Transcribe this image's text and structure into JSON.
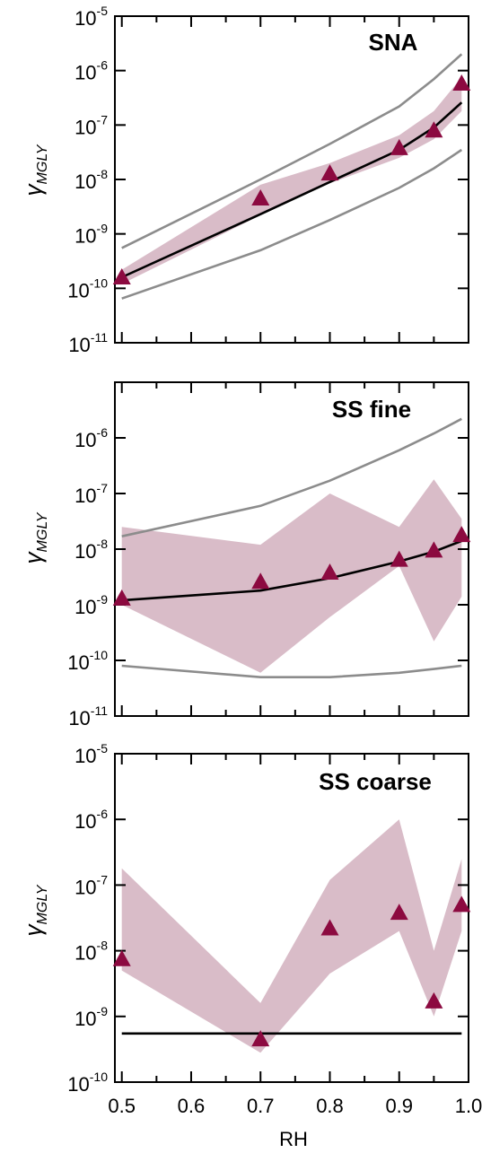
{
  "colors": {
    "band": "#d9bcc8",
    "marker": "#8c0a40",
    "fit_line": "#000000",
    "bound_line": "#8c8c8c",
    "frame": "#000000"
  },
  "figure": {
    "xlabel": "RH",
    "x_tick_labels": [
      "0.5",
      "0.6",
      "0.7",
      "0.8",
      "0.9",
      "1.0"
    ]
  },
  "chart_data": [
    {
      "type": "line",
      "title": "SNA",
      "ylabel": "γ",
      "ylabel_sub": "MGLY",
      "yscale": "log",
      "ylim_exp": [
        -11,
        -5
      ],
      "xlim": [
        0.49,
        1.0
      ],
      "y_tick_exponents": [
        -11,
        -10,
        -9,
        -8,
        -7,
        -6,
        -5
      ],
      "series": [
        {
          "kind": "markers",
          "x": [
            0.5,
            0.7,
            0.8,
            0.9,
            0.95,
            0.99
          ],
          "y": [
            1.6e-10,
            4.5e-09,
            1.3e-08,
            3.8e-08,
            8e-08,
            5.8e-07
          ]
        },
        {
          "kind": "fit",
          "x": [
            0.5,
            0.7,
            0.8,
            0.9,
            0.95,
            0.99
          ],
          "y": [
            1.6e-10,
            2.3e-09,
            9e-09,
            3.5e-08,
            9e-08,
            2.6e-07
          ]
        },
        {
          "kind": "upper",
          "x": [
            0.5,
            0.7,
            0.8,
            0.9,
            0.95,
            0.99
          ],
          "y": [
            5.5e-10,
            1e-08,
            4.5e-08,
            2.2e-07,
            7e-07,
            2e-06
          ]
        },
        {
          "kind": "lower",
          "x": [
            0.5,
            0.7,
            0.8,
            0.9,
            0.95,
            0.99
          ],
          "y": [
            6.5e-11,
            5e-10,
            1.8e-09,
            7e-09,
            1.6e-08,
            3.5e-08
          ]
        }
      ],
      "band": {
        "x": [
          0.5,
          0.7,
          0.8,
          0.9,
          0.95,
          0.99
        ],
        "upper": [
          2.2e-10,
          8e-09,
          2e-08,
          6.5e-08,
          1.8e-07,
          7.5e-07
        ],
        "lower": [
          1.2e-10,
          2.2e-09,
          8.5e-09,
          2.5e-08,
          5.5e-08,
          1.8e-07
        ]
      }
    },
    {
      "type": "line",
      "title": "SS fine",
      "ylabel": "γ",
      "ylabel_sub": "MGLY",
      "yscale": "log",
      "ylim_exp": [
        -11,
        -5
      ],
      "xlim": [
        0.49,
        1.0
      ],
      "y_tick_exponents": [
        -11,
        -10,
        -9,
        -8,
        -7,
        -6
      ],
      "series": [
        {
          "kind": "markers",
          "x": [
            0.5,
            0.7,
            0.8,
            0.9,
            0.95,
            0.99
          ],
          "y": [
            1.3e-09,
            2.6e-09,
            3.8e-09,
            6.5e-09,
            9.5e-09,
            1.8e-08
          ]
        },
        {
          "kind": "fit",
          "x": [
            0.5,
            0.7,
            0.8,
            0.9,
            0.95,
            0.99
          ],
          "y": [
            1.2e-09,
            1.8e-09,
            3e-09,
            6e-09,
            9e-09,
            1.4e-08
          ]
        },
        {
          "kind": "upper",
          "x": [
            0.5,
            0.7,
            0.8,
            0.9,
            0.95,
            0.99
          ],
          "y": [
            1.7e-08,
            6e-08,
            1.7e-07,
            6e-07,
            1.2e-06,
            2.2e-06
          ]
        },
        {
          "kind": "lower",
          "x": [
            0.5,
            0.7,
            0.8,
            0.9,
            0.95,
            0.99
          ],
          "y": [
            8e-11,
            5e-11,
            5e-11,
            6e-11,
            7e-11,
            8e-11
          ]
        }
      ],
      "band": {
        "x": [
          0.5,
          0.7,
          0.8,
          0.9,
          0.95,
          0.99
        ],
        "upper": [
          2.5e-08,
          1.2e-08,
          1e-07,
          2.5e-08,
          1.8e-07,
          3.5e-08
        ],
        "lower": [
          1e-09,
          6e-11,
          6e-10,
          5e-09,
          2.2e-10,
          1.4e-09
        ]
      }
    },
    {
      "type": "line",
      "title": "SS coarse",
      "ylabel": "γ",
      "ylabel_sub": "MGLY",
      "yscale": "log",
      "ylim_exp": [
        -10,
        -5
      ],
      "xlim": [
        0.49,
        1.0
      ],
      "y_tick_exponents": [
        -10,
        -9,
        -8,
        -7,
        -6,
        -5
      ],
      "series": [
        {
          "kind": "markers",
          "x": [
            0.5,
            0.7,
            0.8,
            0.9,
            0.95,
            0.99
          ],
          "y": [
            7.5e-09,
            4.5e-10,
            2.2e-08,
            3.8e-08,
            1.7e-09,
            5e-08
          ]
        },
        {
          "kind": "fit",
          "x": [
            0.5,
            0.99
          ],
          "y": [
            5.5e-10,
            5.5e-10
          ]
        }
      ],
      "band": {
        "x": [
          0.5,
          0.7,
          0.8,
          0.9,
          0.95,
          0.99
        ],
        "upper": [
          1.8e-07,
          1.6e-09,
          1.2e-07,
          1e-06,
          1e-08,
          2.5e-07
        ],
        "lower": [
          5e-09,
          2.8e-10,
          4.5e-09,
          2e-08,
          1e-09,
          2e-08
        ]
      }
    }
  ]
}
